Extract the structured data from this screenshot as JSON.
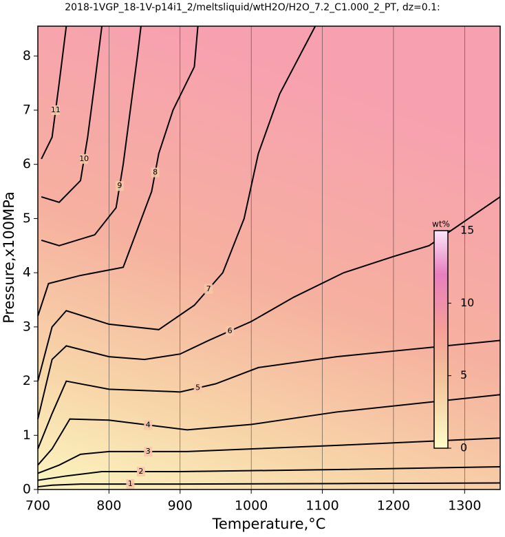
{
  "chart_data": {
    "type": "contour",
    "title": "2018-1VGP_18-1V-p14i1_2/meltsliquid/wtH2O/H2O_7.2_C1.000_2_PT, dz=0.1:",
    "x_label": "Temperature,°C",
    "y_label": "Pressure,x100MPa",
    "xlim": [
      700,
      1350
    ],
    "ylim": [
      0,
      8.55
    ],
    "xticks": [
      700,
      800,
      900,
      1000,
      1100,
      1200,
      1300
    ],
    "yticks": [
      0,
      1,
      2,
      3,
      4,
      5,
      6,
      7,
      8
    ],
    "grid": true,
    "color": "#000000",
    "contours": [
      {
        "level": 1,
        "x": [
          700,
          720,
          760,
          900,
          1130,
          1350
        ],
        "y": [
          0.05,
          0.08,
          0.1,
          0.1,
          0.11,
          0.12
        ]
      },
      {
        "level": 2,
        "x": [
          700,
          740,
          790,
          900,
          1130,
          1350
        ],
        "y": [
          0.17,
          0.25,
          0.33,
          0.33,
          0.37,
          0.42
        ]
      },
      {
        "level": 3,
        "x": [
          700,
          730,
          760,
          800,
          910,
          1130,
          1350
        ],
        "y": [
          0.3,
          0.45,
          0.65,
          0.7,
          0.7,
          0.82,
          0.95
        ]
      },
      {
        "level": 4,
        "x": [
          700,
          720,
          745,
          800,
          910,
          1000,
          1120,
          1350
        ],
        "y": [
          0.45,
          0.75,
          1.3,
          1.28,
          1.1,
          1.2,
          1.43,
          1.75
        ]
      },
      {
        "level": 5,
        "x": [
          700,
          720,
          740,
          800,
          900,
          950,
          1010,
          1120,
          1350
        ],
        "y": [
          0.75,
          1.4,
          2.0,
          1.85,
          1.8,
          1.95,
          2.25,
          2.45,
          2.75
        ]
      },
      {
        "level": 6,
        "x": [
          700,
          720,
          740,
          800,
          850,
          900,
          940,
          1000,
          1060,
          1130,
          1200,
          1250,
          1350
        ],
        "y": [
          1.3,
          2.4,
          2.65,
          2.45,
          2.4,
          2.5,
          2.75,
          3.1,
          3.55,
          4.0,
          4.3,
          4.5,
          5.4
        ]
      },
      {
        "level": 7,
        "x": [
          700,
          720,
          740,
          800,
          870,
          920,
          960,
          990,
          1010,
          1040,
          1090
        ],
        "y": [
          2.0,
          3.0,
          3.3,
          3.05,
          2.95,
          3.4,
          4.0,
          5.0,
          6.2,
          7.3,
          8.55
        ]
      },
      {
        "level": 8,
        "x": [
          700,
          715,
          760,
          820,
          860,
          870,
          890,
          920,
          925
        ],
        "y": [
          3.2,
          3.8,
          3.95,
          4.1,
          5.5,
          6.2,
          7.0,
          7.8,
          8.55
        ]
      },
      {
        "level": 9,
        "x": [
          705,
          730,
          780,
          810,
          820,
          830,
          840,
          845
        ],
        "y": [
          4.6,
          4.5,
          4.7,
          5.2,
          6.0,
          7.0,
          8.0,
          8.55
        ]
      },
      {
        "level": 10,
        "x": [
          705,
          730,
          760,
          770,
          780,
          790
        ],
        "y": [
          5.4,
          5.3,
          5.7,
          6.5,
          7.5,
          8.55
        ]
      },
      {
        "level": 11,
        "x": [
          705,
          720,
          730,
          740
        ],
        "y": [
          6.1,
          6.5,
          7.5,
          8.55
        ]
      }
    ],
    "colorbar": {
      "label": "wt%",
      "lim": [
        0,
        15
      ],
      "ticks": [
        0,
        5,
        10,
        15
      ]
    }
  }
}
